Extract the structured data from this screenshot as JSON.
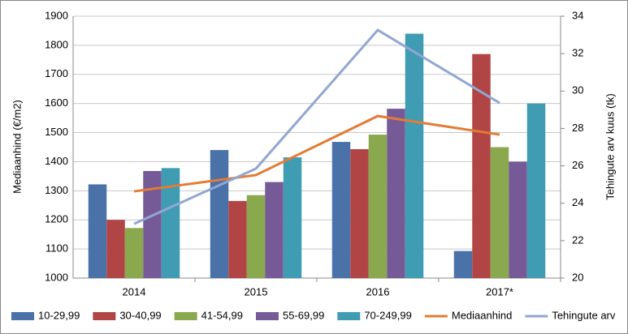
{
  "chart_data": {
    "type": "bar",
    "categories": [
      "2014",
      "2015",
      "2016",
      "2017*"
    ],
    "y_label": "Mediaanhind (€/m2)",
    "y2_label": "Tehingute arv kuus (tk)",
    "ylim": [
      1000,
      1900
    ],
    "yticks": [
      1000,
      1100,
      1200,
      1300,
      1400,
      1500,
      1600,
      1700,
      1800,
      1900
    ],
    "y2lim": [
      20,
      34
    ],
    "y2ticks": [
      20,
      22,
      24,
      26,
      28,
      30,
      32,
      34
    ],
    "grid": true,
    "legend": "bottom",
    "series": [
      {
        "name": "10-29,99",
        "color": "#4a72a8",
        "values": [
          1322,
          1440,
          1468,
          1093
        ]
      },
      {
        "name": "30-40,99",
        "color": "#b14545",
        "values": [
          1200,
          1265,
          1443,
          1770
        ]
      },
      {
        "name": "41-54,99",
        "color": "#8aa84e",
        "values": [
          1172,
          1285,
          1493,
          1450
        ]
      },
      {
        "name": "55-69,99",
        "color": "#755a97",
        "values": [
          1368,
          1330,
          1582,
          1400
        ]
      },
      {
        "name": "70-249,99",
        "color": "#3f9cb3",
        "values": [
          1378,
          1415,
          1840,
          1600
        ]
      },
      {
        "name": "Mediaanhind",
        "type": "line",
        "color": "#e37c34",
        "values": [
          1298,
          1354,
          1557,
          1493
        ]
      },
      {
        "name": "Tehingute arv",
        "type": "line",
        "axis": "y2",
        "color": "#91a7d2",
        "values": [
          22.9,
          25.85,
          33.26,
          29.36
        ]
      }
    ]
  }
}
